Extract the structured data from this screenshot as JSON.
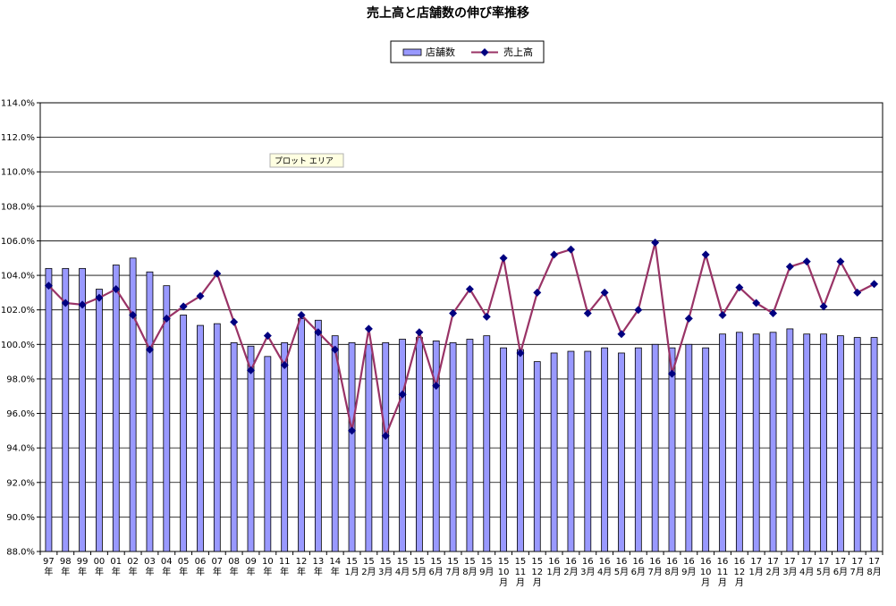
{
  "chart_data": {
    "type": "bar",
    "title": "売上高と店舗数の伸び率推移",
    "categories": [
      [
        "97",
        "年"
      ],
      [
        "98",
        "年"
      ],
      [
        "99",
        "年"
      ],
      [
        "00",
        "年"
      ],
      [
        "01",
        "年"
      ],
      [
        "02",
        "年"
      ],
      [
        "03",
        "年"
      ],
      [
        "04",
        "年"
      ],
      [
        "05",
        "年"
      ],
      [
        "06",
        "年"
      ],
      [
        "07",
        "年"
      ],
      [
        "08",
        "年"
      ],
      [
        "09",
        "年"
      ],
      [
        "10",
        "年"
      ],
      [
        "11",
        "年"
      ],
      [
        "12",
        "年"
      ],
      [
        "13",
        "年"
      ],
      [
        "14",
        "年"
      ],
      [
        "15",
        "1月"
      ],
      [
        "15",
        "2月"
      ],
      [
        "15",
        "3月"
      ],
      [
        "15",
        "4月"
      ],
      [
        "15",
        "5月"
      ],
      [
        "15",
        "6月"
      ],
      [
        "15",
        "7月"
      ],
      [
        "15",
        "8月"
      ],
      [
        "15",
        "9月"
      ],
      [
        "15",
        "10",
        "月"
      ],
      [
        "15",
        "11",
        "月"
      ],
      [
        "15",
        "12",
        "月"
      ],
      [
        "16",
        "1月"
      ],
      [
        "16",
        "2月"
      ],
      [
        "16",
        "3月"
      ],
      [
        "16",
        "4月"
      ],
      [
        "16",
        "5月"
      ],
      [
        "16",
        "6月"
      ],
      [
        "16",
        "7月"
      ],
      [
        "16",
        "8月"
      ],
      [
        "16",
        "9月"
      ],
      [
        "16",
        "10",
        "月"
      ],
      [
        "16",
        "11",
        "月"
      ],
      [
        "16",
        "12",
        "月"
      ],
      [
        "17",
        "1月"
      ],
      [
        "17",
        "2月"
      ],
      [
        "17",
        "3月"
      ],
      [
        "17",
        "4月"
      ],
      [
        "17",
        "5月"
      ],
      [
        "17",
        "6月"
      ],
      [
        "17",
        "7月"
      ],
      [
        "17",
        "8月"
      ]
    ],
    "series": [
      {
        "name": "店舗数",
        "kind": "bar",
        "color": "#9999ff",
        "values": [
          104.4,
          104.4,
          104.4,
          103.2,
          104.6,
          105.0,
          104.2,
          103.4,
          101.7,
          101.1,
          101.2,
          100.1,
          99.9,
          99.3,
          100.1,
          101.5,
          101.4,
          100.5,
          100.1,
          100.0,
          100.1,
          100.3,
          100.4,
          100.2,
          100.1,
          100.3,
          100.5,
          99.8,
          99.7,
          99.0,
          99.5,
          99.6,
          99.6,
          99.8,
          99.5,
          99.8,
          100.0,
          99.8,
          100.0,
          99.8,
          100.6,
          100.7,
          100.6,
          100.7,
          100.9,
          100.6,
          100.6,
          100.5,
          100.4,
          100.4
        ]
      },
      {
        "name": "売上高",
        "kind": "line",
        "color": "#993366",
        "marker_color": "#000080",
        "values": [
          103.4,
          102.4,
          102.3,
          102.7,
          103.2,
          101.7,
          99.7,
          101.5,
          102.2,
          102.8,
          104.1,
          101.3,
          98.5,
          100.5,
          98.8,
          101.7,
          100.7,
          99.7,
          95.0,
          100.9,
          94.7,
          97.1,
          100.7,
          97.6,
          101.8,
          103.2,
          101.6,
          105.0,
          99.5,
          103.0,
          105.2,
          105.5,
          101.8,
          103.0,
          100.6,
          102.0,
          105.9,
          98.3,
          101.5,
          105.2,
          101.7,
          103.3,
          102.4,
          101.8,
          104.5,
          104.8,
          102.2,
          104.8,
          103.0,
          103.5
        ]
      }
    ],
    "ylim": [
      88.0,
      114.0
    ],
    "ytick_step": 2.0,
    "ytick_format": "percent_1dp",
    "grid": true,
    "legend": "top-center",
    "xlabel": "",
    "ylabel": ""
  },
  "tooltip": {
    "label": "プロット エリア"
  }
}
